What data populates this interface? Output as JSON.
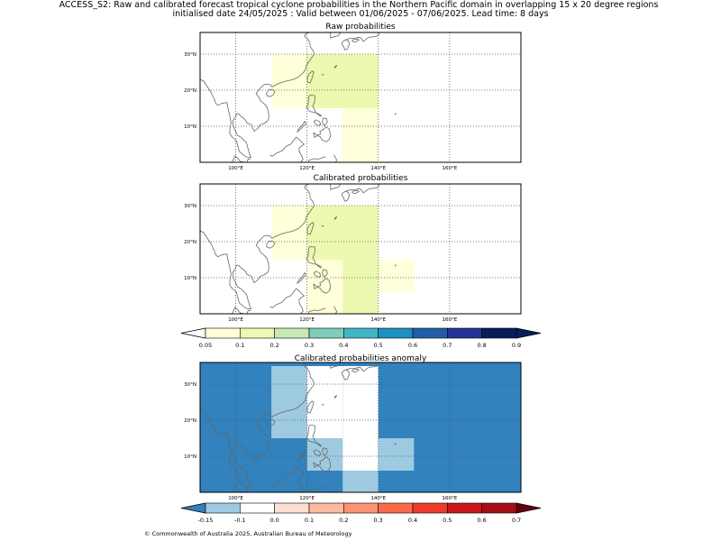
{
  "figure": {
    "title_line1": "ACCESS_S2: Raw and calibrated forecast tropical cyclone probabilities in the Northern Pacific domain in overlapping 15 x 20 degree regions",
    "title_line2": "initialised date 24/05/2025 :  Valid between 01/06/2025 - 07/06/2025. Lead time: 8 days",
    "copyright": "© Commonwealth of Australia 2025, Australian Bureau of Meteorology"
  },
  "colors": {
    "probability_bins": [
      "#ffffd9",
      "#edf8b1",
      "#c7e9b4",
      "#7fcdbb",
      "#41b6c4",
      "#1d91c0",
      "#225ea8",
      "#253494",
      "#081d58"
    ],
    "probability_under": "#ffffff",
    "probability_over": "#081d58",
    "anomaly_bins": [
      "#9ecae1",
      "#ffffff",
      "#fee0d2",
      "#fcbba1",
      "#fc9272",
      "#fb6a4a",
      "#ef3b2c",
      "#cb181d",
      "#a50f15"
    ],
    "anomaly_under": "#3182bd",
    "anomaly_over": "#67000d",
    "coastline": "#666666",
    "grid": "#555555"
  },
  "chart_data": [
    {
      "type": "heatmap",
      "title": "Raw probabilities",
      "xlim": [
        90,
        180
      ],
      "ylim": [
        0,
        36
      ],
      "xticks": [
        100,
        120,
        140,
        160
      ],
      "xtick_labels": [
        "100°E",
        "120°E",
        "140°E",
        "160°E"
      ],
      "yticks": [
        10,
        20,
        30
      ],
      "ytick_labels": [
        "10°N",
        "20°N",
        "30°N"
      ],
      "colorbar": "probability",
      "cells": [
        {
          "lon": [
            110,
            130
          ],
          "lat": [
            15,
            30
          ],
          "bin": 0
        },
        {
          "lon": [
            130,
            140
          ],
          "lat": [
            0,
            15
          ],
          "bin": 0
        },
        {
          "lon": [
            130,
            140
          ],
          "lat": [
            15,
            30
          ],
          "bin": 1
        },
        {
          "lon": [
            120,
            140
          ],
          "lat": [
            15,
            30
          ],
          "bin": 1
        }
      ]
    },
    {
      "type": "heatmap",
      "title": "Calibrated probabilities",
      "xlim": [
        90,
        180
      ],
      "ylim": [
        0,
        36
      ],
      "xticks": [
        100,
        120,
        140,
        160
      ],
      "xtick_labels": [
        "100°E",
        "120°E",
        "140°E",
        "160°E"
      ],
      "yticks": [
        10,
        20,
        30
      ],
      "ytick_labels": [
        "10°N",
        "20°N",
        "30°N"
      ],
      "colorbar": "probability",
      "cells": [
        {
          "lon": [
            110,
            130
          ],
          "lat": [
            15,
            30
          ],
          "bin": 0
        },
        {
          "lon": [
            120,
            130
          ],
          "lat": [
            0,
            15
          ],
          "bin": 0
        },
        {
          "lon": [
            130,
            150
          ],
          "lat": [
            6,
            15
          ],
          "bin": 0
        },
        {
          "lon": [
            130,
            140
          ],
          "lat": [
            0,
            15
          ],
          "bin": 1
        },
        {
          "lon": [
            120,
            140
          ],
          "lat": [
            15,
            30
          ],
          "bin": 1
        }
      ]
    },
    {
      "type": "heatmap",
      "title": "Calibrated probabilities anomaly",
      "xlim": [
        90,
        180
      ],
      "ylim": [
        0,
        36
      ],
      "xticks": [
        100,
        120,
        140,
        160
      ],
      "xtick_labels": [
        "100°E",
        "120°E",
        "140°E",
        "160°E"
      ],
      "yticks": [
        10,
        20,
        30
      ],
      "ytick_labels": [
        "10°N",
        "20°N",
        "30°N"
      ],
      "colorbar": "anomaly",
      "background_bin": -1,
      "cells": [
        {
          "lon": [
            110,
            120
          ],
          "lat": [
            15,
            35
          ],
          "bin": 0
        },
        {
          "lon": [
            120,
            130
          ],
          "lat": [
            15,
            35
          ],
          "bin": 1
        },
        {
          "lon": [
            120,
            130
          ],
          "lat": [
            6,
            15
          ],
          "bin": 0
        },
        {
          "lon": [
            130,
            140
          ],
          "lat": [
            6,
            35
          ],
          "bin": 1
        },
        {
          "lon": [
            130,
            140
          ],
          "lat": [
            0,
            6
          ],
          "bin": 0
        },
        {
          "lon": [
            140,
            150
          ],
          "lat": [
            6,
            15
          ],
          "bin": 0
        }
      ]
    }
  ],
  "colorbars": {
    "probability": {
      "boundaries": [
        0.05,
        0.1,
        0.2,
        0.3,
        0.4,
        0.5,
        0.6,
        0.7,
        0.8,
        0.9
      ],
      "tick_labels": [
        "0.05",
        "0.1",
        "0.2",
        "0.3",
        "0.4",
        "0.5",
        "0.6",
        "0.7",
        "0.8",
        "0.9"
      ],
      "extend": "both"
    },
    "anomaly": {
      "boundaries": [
        -0.15,
        -0.1,
        0.0,
        0.1,
        0.2,
        0.3,
        0.4,
        0.5,
        0.6,
        0.7
      ],
      "tick_labels": [
        "-0.15",
        "-0.1",
        "0.0",
        "0.1",
        "0.2",
        "0.3",
        "0.4",
        "0.5",
        "0.6",
        "0.7"
      ],
      "extend": "both"
    }
  }
}
